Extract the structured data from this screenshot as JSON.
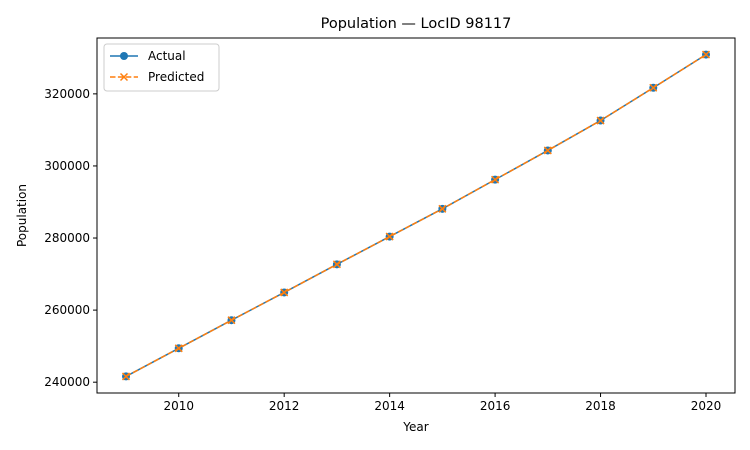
{
  "chart_data": {
    "type": "line",
    "title": "Population — LocID 98117",
    "xlabel": "Year",
    "ylabel": "Population",
    "x": [
      2009,
      2010,
      2011,
      2012,
      2013,
      2014,
      2015,
      2016,
      2017,
      2018,
      2019,
      2020
    ],
    "series": [
      {
        "name": "Actual",
        "color": "#1f77b4",
        "marker": "circle",
        "linestyle": "solid",
        "values": [
          241600,
          249400,
          257200,
          264900,
          272700,
          280400,
          288100,
          296200,
          304300,
          312600,
          321700,
          330900
        ]
      },
      {
        "name": "Predicted",
        "color": "#ff7f0e",
        "marker": "x",
        "linestyle": "dashed",
        "values": [
          241600,
          249400,
          257200,
          264900,
          272700,
          280400,
          288100,
          296200,
          304300,
          312600,
          321700,
          330900
        ]
      }
    ],
    "xlim": [
      2008.45,
      2020.55
    ],
    "ylim": [
      237000,
      335500
    ],
    "xticks": [
      "2010",
      "2012",
      "2014",
      "2016",
      "2018",
      "2020"
    ],
    "yticks": [
      "240000",
      "260000",
      "280000",
      "300000",
      "320000"
    ],
    "grid": false,
    "legend": "top-left"
  }
}
